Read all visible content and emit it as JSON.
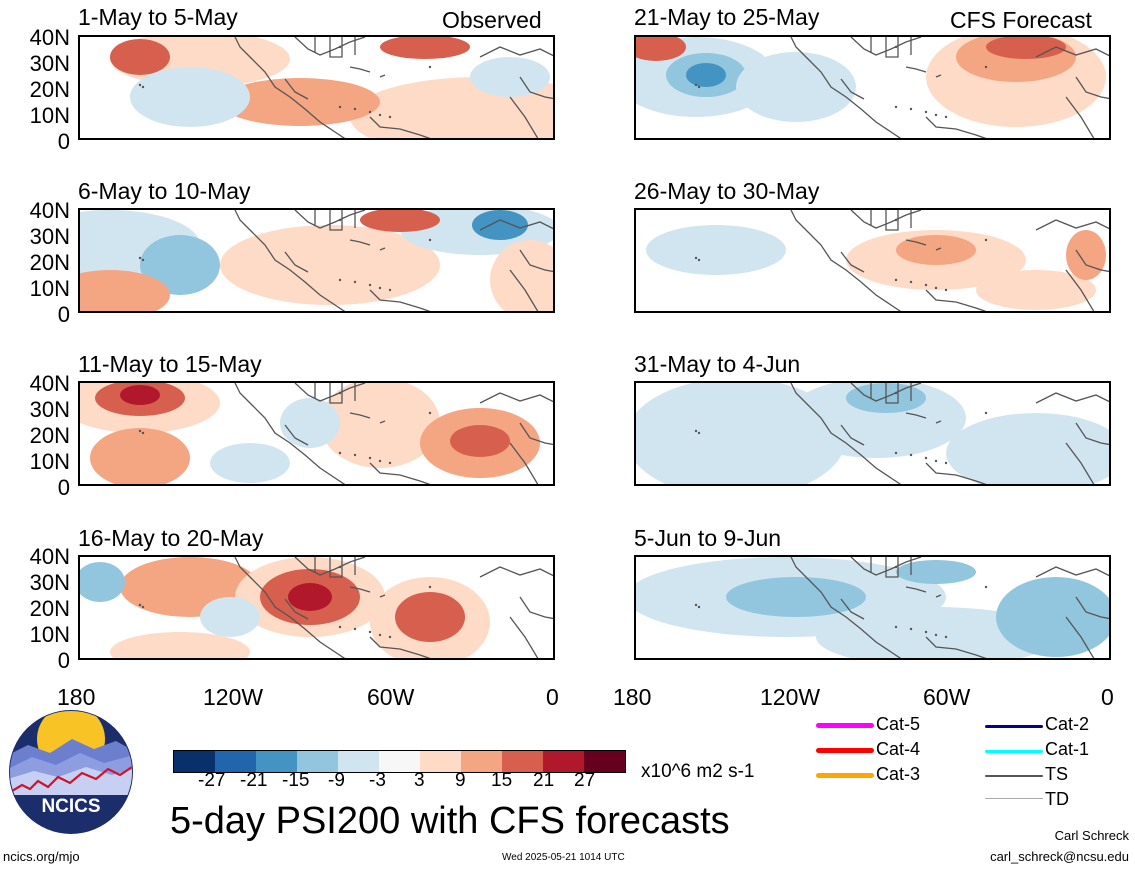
{
  "columns": {
    "observed": "Observed",
    "forecast": "CFS Forecast"
  },
  "panels_observed": [
    "1-May to 5-May",
    "6-May to 10-May",
    "11-May to 15-May",
    "16-May to 20-May"
  ],
  "panels_forecast": [
    "21-May to 25-May",
    "26-May to 30-May",
    "31-May to 4-Jun",
    "5-Jun to 9-Jun"
  ],
  "lat_labels": [
    "40N",
    "30N",
    "20N",
    "10N",
    "0"
  ],
  "lon_labels": [
    "180",
    "120W",
    "60W",
    "0"
  ],
  "colorbar": {
    "colors": [
      "#08306b",
      "#2166ac",
      "#4393c3",
      "#92c5de",
      "#d1e5f0",
      "#f7f7f7",
      "#fddbc7",
      "#f4a582",
      "#d6604d",
      "#b2182b",
      "#67001f"
    ],
    "labels": [
      "-27",
      "-21",
      "-15",
      "-9",
      "-3",
      "3",
      "9",
      "15",
      "21",
      "27"
    ],
    "units": "x10^6 m2 s-1"
  },
  "legend": [
    {
      "label": "Cat-5",
      "color": "#ff00ff"
    },
    {
      "label": "Cat-4",
      "color": "#ff0000"
    },
    {
      "label": "Cat-3",
      "color": "#ffa500"
    },
    {
      "label": "Cat-2",
      "color": "#00008b"
    },
    {
      "label": "Cat-1",
      "color": "#00ffff"
    },
    {
      "label": "TS",
      "color": "#555555"
    },
    {
      "label": "TD",
      "color": "#aaaaaa"
    }
  ],
  "title": "5-day PSI200 with CFS forecasts",
  "logo_text": "NCICS",
  "footer": {
    "url": "ncics.org/mjo",
    "timestamp": "Wed 2025-05-21 1014 UTC",
    "author": "Carl Schreck",
    "email": "carl_schreck@ncsu.edu"
  }
}
